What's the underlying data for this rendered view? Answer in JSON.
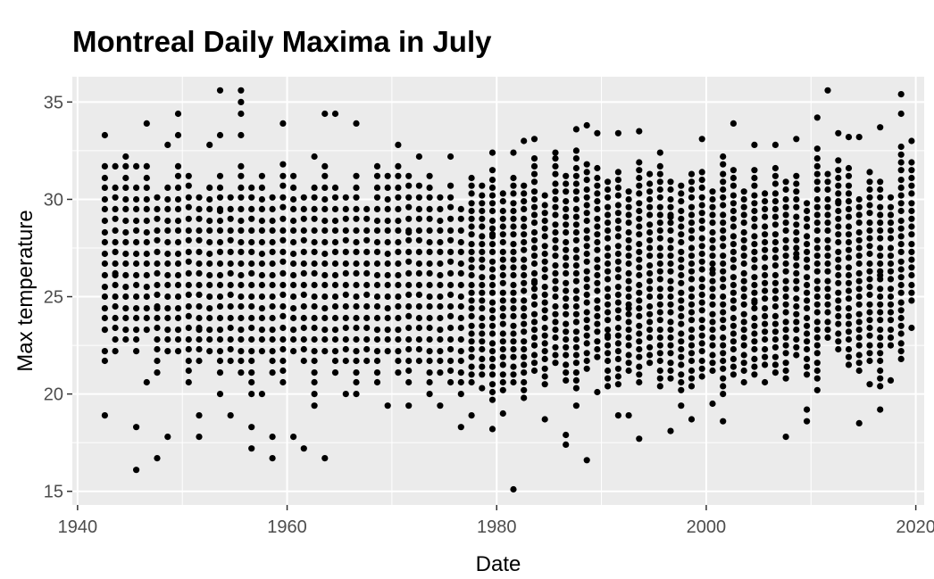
{
  "chart_data": {
    "type": "scatter",
    "title": "Montreal Daily Maxima in July",
    "xlabel": "Date",
    "ylabel": "Max temperature",
    "xlim": [
      1939.5,
      2020.8
    ],
    "ylim": [
      14.3,
      36.3
    ],
    "x_ticks": [
      1940,
      1960,
      1980,
      2000,
      2020
    ],
    "y_ticks": [
      15,
      20,
      25,
      30,
      35
    ],
    "x_minor": [
      1950,
      1970,
      1990,
      2010
    ],
    "y_minor": [
      17.5,
      22.5,
      27.5,
      32.5
    ],
    "grid": true,
    "background": "#ebebeb",
    "point_color": "#000000",
    "points": [
      [
        1942.6,
        33.3
      ],
      [
        1942.6,
        18.9
      ],
      [
        1942.6,
        31.7
      ],
      [
        1942.6,
        22.2
      ],
      [
        1942.6,
        21.7
      ],
      [
        1943.6,
        31.7
      ],
      [
        1943.6,
        22.2
      ],
      [
        1944.6,
        32.2
      ],
      [
        1944.6,
        22.8
      ],
      [
        1945.6,
        16.1
      ],
      [
        1945.6,
        18.3
      ],
      [
        1945.6,
        31.7
      ],
      [
        1946.6,
        33.9
      ],
      [
        1946.6,
        20.6
      ],
      [
        1947.6,
        16.7
      ],
      [
        1947.6,
        21.1
      ],
      [
        1948.6,
        17.8
      ],
      [
        1948.6,
        32.8
      ],
      [
        1949.6,
        34.4
      ],
      [
        1949.6,
        33.3
      ],
      [
        1951.6,
        17.8
      ],
      [
        1951.6,
        18.9
      ],
      [
        1952.6,
        32.8
      ],
      [
        1953.6,
        35.6
      ],
      [
        1953.6,
        33.3
      ],
      [
        1953.6,
        20.0
      ],
      [
        1954.6,
        18.9
      ],
      [
        1955.6,
        35.6
      ],
      [
        1955.6,
        35.0
      ],
      [
        1955.6,
        34.4
      ],
      [
        1955.6,
        33.3
      ],
      [
        1956.6,
        17.2
      ],
      [
        1956.6,
        18.3
      ],
      [
        1957.6,
        20.0
      ],
      [
        1958.6,
        16.7
      ],
      [
        1958.6,
        17.8
      ],
      [
        1959.6,
        33.9
      ],
      [
        1959.6,
        20.6
      ],
      [
        1960.6,
        17.8
      ],
      [
        1961.6,
        17.2
      ],
      [
        1962.6,
        19.4
      ],
      [
        1962.6,
        32.2
      ],
      [
        1963.6,
        16.7
      ],
      [
        1963.6,
        34.4
      ],
      [
        1964.6,
        34.4
      ],
      [
        1965.6,
        20.0
      ],
      [
        1966.6,
        33.9
      ],
      [
        1968.6,
        20.6
      ],
      [
        1969.6,
        19.4
      ],
      [
        1970.6,
        32.8
      ],
      [
        1971.6,
        19.4
      ],
      [
        1972.6,
        32.2
      ],
      [
        1974.6,
        19.4
      ],
      [
        1975.6,
        32.2
      ],
      [
        1976.6,
        18.3
      ],
      [
        1977.6,
        18.9
      ],
      [
        1978.6,
        20.3
      ],
      [
        1979.6,
        18.2
      ],
      [
        1979.6,
        32.4
      ],
      [
        1980.6,
        19.0
      ],
      [
        1981.6,
        15.1
      ],
      [
        1981.6,
        32.4
      ],
      [
        1982.6,
        33.0
      ],
      [
        1983.6,
        33.1
      ],
      [
        1984.6,
        18.7
      ],
      [
        1985.6,
        32.4
      ],
      [
        1986.6,
        17.4
      ],
      [
        1986.6,
        17.9
      ],
      [
        1987.6,
        33.6
      ],
      [
        1987.6,
        19.4
      ],
      [
        1988.6,
        16.6
      ],
      [
        1988.6,
        33.8
      ],
      [
        1989.6,
        33.4
      ],
      [
        1989.6,
        20.1
      ],
      [
        1991.6,
        33.4
      ],
      [
        1991.6,
        18.9
      ],
      [
        1992.6,
        18.9
      ],
      [
        1993.6,
        33.5
      ],
      [
        1993.6,
        17.7
      ],
      [
        1995.6,
        32.4
      ],
      [
        1996.6,
        18.1
      ],
      [
        1997.6,
        19.4
      ],
      [
        1998.6,
        18.7
      ],
      [
        1999.6,
        33.1
      ],
      [
        2000.6,
        19.5
      ],
      [
        2001.6,
        18.6
      ],
      [
        2002.6,
        33.9
      ],
      [
        2003.6,
        20.6
      ],
      [
        2004.6,
        32.8
      ],
      [
        2005.6,
        20.6
      ],
      [
        2006.6,
        32.8
      ],
      [
        2007.6,
        17.8
      ],
      [
        2008.6,
        33.1
      ],
      [
        2009.6,
        18.6
      ],
      [
        2009.6,
        19.2
      ],
      [
        2010.6,
        34.2
      ],
      [
        2010.6,
        20.2
      ],
      [
        2011.6,
        35.6
      ],
      [
        2012.6,
        33.4
      ],
      [
        2013.6,
        33.2
      ],
      [
        2014.6,
        33.2
      ],
      [
        2014.6,
        18.5
      ],
      [
        2015.6,
        20.5
      ],
      [
        2016.6,
        33.7
      ],
      [
        2016.6,
        19.2
      ],
      [
        2017.6,
        20.7
      ],
      [
        2018.6,
        35.4
      ],
      [
        2018.6,
        34.4
      ],
      [
        2019.6,
        33.0
      ],
      [
        2019.6,
        23.4
      ],
      [
        1943.6,
        26.1
      ],
      [
        1947.6,
        24.4
      ],
      [
        1953.6,
        29.4
      ],
      [
        1960.6,
        27.2
      ],
      [
        1966.6,
        25.0
      ],
      [
        1971.6,
        28.3
      ],
      [
        1976.6,
        26.7
      ],
      [
        1979.6,
        28.2
      ],
      [
        1983.6,
        25.7
      ],
      [
        1987.6,
        27.9
      ],
      [
        1992.6,
        24.4
      ],
      [
        1996.6,
        29.1
      ],
      [
        2000.6,
        26.4
      ],
      [
        2004.6,
        24.7
      ],
      [
        2008.6,
        27.2
      ],
      [
        2012.6,
        29.8
      ],
      [
        2016.6,
        26.1
      ],
      [
        1951.6,
        23.3
      ],
      [
        1964.6,
        30.6
      ],
      [
        1990.6,
        23.0
      ]
    ],
    "column_bands": [
      [
        1942.6,
        23.3,
        31.7
      ],
      [
        1943.6,
        22.8,
        31.1
      ],
      [
        1944.6,
        23.3,
        31.7
      ],
      [
        1945.6,
        22.2,
        31.1
      ],
      [
        1946.6,
        23.3,
        31.7
      ],
      [
        1947.6,
        21.7,
        30.6
      ],
      [
        1948.6,
        22.2,
        31.1
      ],
      [
        1949.6,
        22.2,
        32.2
      ],
      [
        1950.6,
        20.6,
        31.7
      ],
      [
        1951.6,
        21.7,
        30.6
      ],
      [
        1952.6,
        22.2,
        31.1
      ],
      [
        1953.6,
        21.1,
        31.7
      ],
      [
        1954.6,
        21.7,
        30.6
      ],
      [
        1955.6,
        21.1,
        32.2
      ],
      [
        1956.6,
        20.0,
        31.1
      ],
      [
        1957.6,
        22.2,
        31.7
      ],
      [
        1958.6,
        21.1,
        30.6
      ],
      [
        1959.6,
        20.6,
        32.2
      ],
      [
        1960.6,
        22.2,
        31.7
      ],
      [
        1961.6,
        21.7,
        30.6
      ],
      [
        1962.6,
        20.0,
        31.1
      ],
      [
        1963.6,
        22.2,
        32.2
      ],
      [
        1964.6,
        21.1,
        31.1
      ],
      [
        1965.6,
        21.7,
        30.6
      ],
      [
        1966.6,
        20.0,
        31.7
      ],
      [
        1967.6,
        21.7,
        30.0
      ],
      [
        1968.6,
        21.1,
        32.2
      ],
      [
        1969.6,
        22.2,
        31.7
      ],
      [
        1970.6,
        21.1,
        32.2
      ],
      [
        1971.6,
        20.6,
        31.7
      ],
      [
        1972.6,
        21.7,
        31.1
      ],
      [
        1973.6,
        20.0,
        31.7
      ],
      [
        1974.6,
        21.1,
        30.6
      ],
      [
        1975.6,
        20.6,
        31.1
      ],
      [
        1976.6,
        20.0,
        30.0
      ],
      [
        1977.6,
        20.6,
        31.1
      ],
      [
        1978.6,
        21.0,
        30.8
      ],
      [
        1979.6,
        19.7,
        31.7
      ],
      [
        1980.6,
        20.2,
        30.4
      ],
      [
        1981.6,
        20.6,
        31.2
      ],
      [
        1982.6,
        19.8,
        30.9
      ],
      [
        1983.6,
        21.2,
        32.4
      ],
      [
        1984.6,
        20.5,
        30.2
      ],
      [
        1985.6,
        21.6,
        32.3
      ],
      [
        1986.6,
        20.7,
        31.3
      ],
      [
        1987.6,
        20.3,
        32.7
      ],
      [
        1988.6,
        21.3,
        32.2
      ],
      [
        1989.6,
        21.9,
        31.6
      ],
      [
        1990.6,
        20.4,
        31.0
      ],
      [
        1991.6,
        20.5,
        31.5
      ],
      [
        1992.6,
        21.2,
        30.7
      ],
      [
        1993.6,
        20.6,
        32.1
      ],
      [
        1994.6,
        21.6,
        31.4
      ],
      [
        1995.6,
        20.4,
        31.9
      ],
      [
        1996.6,
        20.8,
        30.9
      ],
      [
        1997.6,
        20.2,
        31.0
      ],
      [
        1998.6,
        20.4,
        31.5
      ],
      [
        1999.6,
        20.9,
        31.7
      ],
      [
        2000.6,
        21.2,
        30.6
      ],
      [
        2001.6,
        20.0,
        32.5
      ],
      [
        2002.6,
        21.0,
        31.9
      ],
      [
        2003.6,
        21.2,
        30.7
      ],
      [
        2004.6,
        21.0,
        31.9
      ],
      [
        2005.6,
        21.5,
        30.6
      ],
      [
        2006.6,
        21.1,
        31.8
      ],
      [
        2007.6,
        20.8,
        31.0
      ],
      [
        2008.6,
        22.0,
        31.6
      ],
      [
        2009.6,
        21.0,
        30.0
      ],
      [
        2010.6,
        20.8,
        32.9
      ],
      [
        2011.6,
        22.9,
        31.7
      ],
      [
        2012.6,
        22.3,
        32.1
      ],
      [
        2013.6,
        21.5,
        31.6
      ],
      [
        2014.6,
        21.2,
        30.3
      ],
      [
        2015.6,
        21.7,
        31.6
      ],
      [
        2016.6,
        20.4,
        31.0
      ],
      [
        2017.6,
        22.5,
        30.4
      ],
      [
        2018.6,
        21.8,
        32.8
      ],
      [
        2019.6,
        24.8,
        32.1
      ]
    ]
  }
}
